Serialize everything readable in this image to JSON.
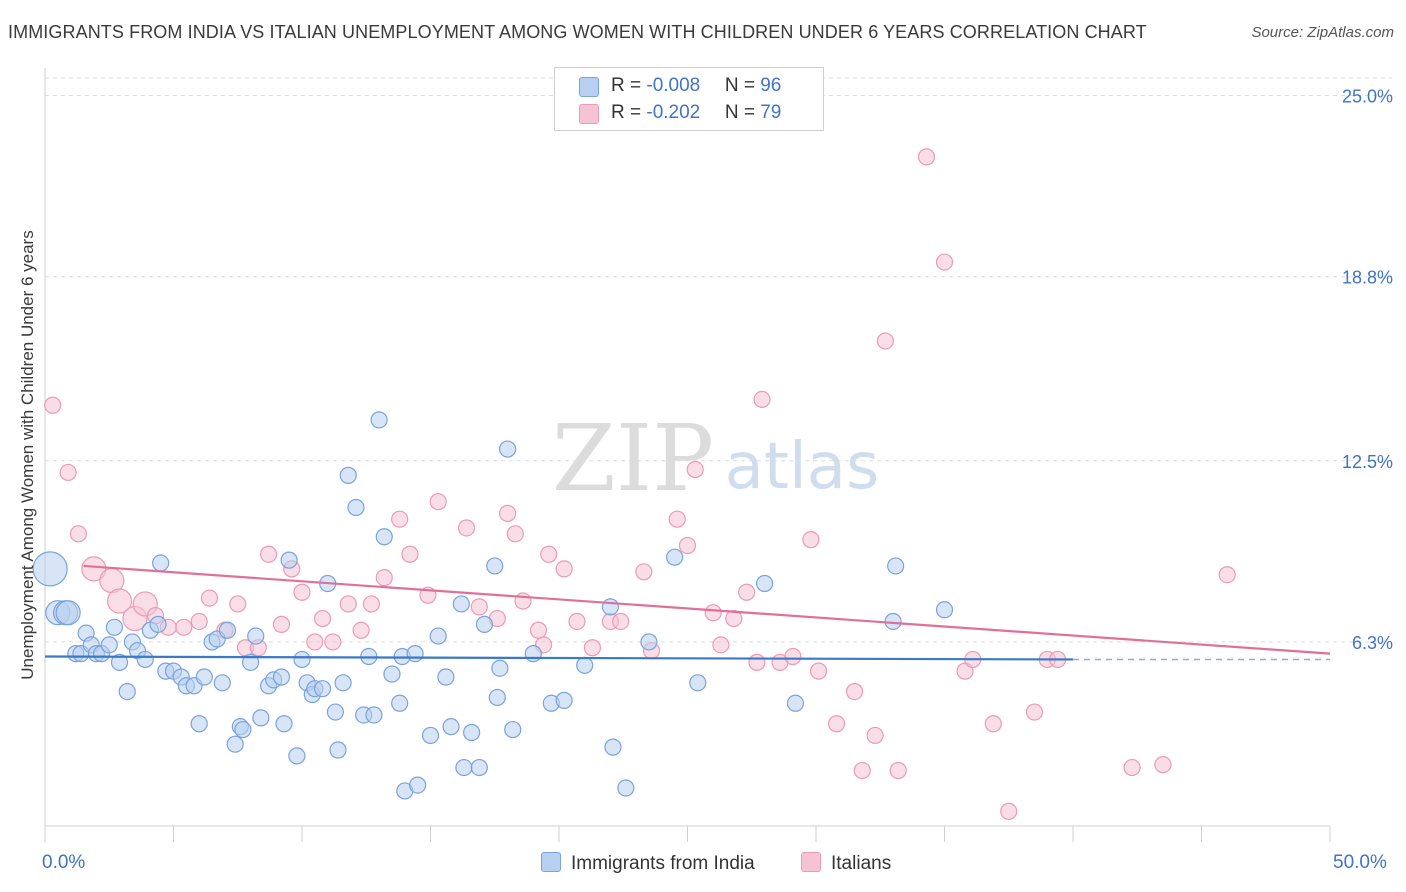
{
  "title": "IMMIGRANTS FROM INDIA VS ITALIAN UNEMPLOYMENT AMONG WOMEN WITH CHILDREN UNDER 6 YEARS CORRELATION CHART",
  "source": "Source: ZipAtlas.com",
  "watermark": {
    "zip": "ZIP",
    "atlas": "atlas"
  },
  "legend": {
    "india": {
      "r_label": "R = ",
      "r_value": "-0.008",
      "n_label": "N = ",
      "n_value": "96"
    },
    "italians": {
      "r_label": "R = ",
      "r_value": "-0.202",
      "n_label": "N = ",
      "n_value": "79"
    }
  },
  "colors": {
    "india_fill": "#b8d0f0",
    "india_stroke": "#7aa3dc",
    "india_line": "#3a78c8",
    "italians_fill": "#f6c3d4",
    "italians_stroke": "#ec9ab6",
    "italians_line": "#e0709a",
    "grid": "#dddddd",
    "tick_label": "#3f74c8"
  },
  "chart_data": {
    "type": "scatter",
    "title": "IMMIGRANTS FROM INDIA VS ITALIAN UNEMPLOYMENT AMONG WOMEN WITH CHILDREN UNDER 6 YEARS CORRELATION CHART",
    "xlabel": "",
    "ylabel": "Unemployment Among Women with Children Under 6 years",
    "xlim": [
      0,
      50
    ],
    "ylim": [
      0,
      25.6
    ],
    "x_tick_labels": [
      "0.0%",
      "50.0%"
    ],
    "y_ticks": [
      6.3,
      12.5,
      18.8,
      25.0
    ],
    "y_tick_labels": [
      "6.3%",
      "12.5%",
      "18.8%",
      "25.0%"
    ],
    "grid": "horizontal dashed",
    "legend_position": "bottom-center",
    "series": [
      {
        "name": "Immigrants from India",
        "trend": {
          "x": [
            0,
            40
          ],
          "y": [
            5.8,
            5.7
          ],
          "extended_to": 50,
          "extended_y": 5.7
        },
        "points": [
          [
            0.2,
            8.8,
            3
          ],
          [
            0.5,
            7.3,
            2
          ],
          [
            0.8,
            7.3,
            2
          ],
          [
            0.9,
            7.3,
            2
          ],
          [
            1.2,
            5.9,
            1
          ],
          [
            1.4,
            5.9,
            1
          ],
          [
            1.6,
            6.6,
            1
          ],
          [
            1.8,
            6.2,
            1
          ],
          [
            2.0,
            5.9,
            1
          ],
          [
            2.2,
            5.9,
            1
          ],
          [
            2.5,
            6.2,
            1
          ],
          [
            2.7,
            6.8,
            1
          ],
          [
            2.9,
            5.6,
            1
          ],
          [
            3.2,
            4.6,
            1
          ],
          [
            3.4,
            6.3,
            1
          ],
          [
            3.6,
            6.0,
            1
          ],
          [
            3.9,
            5.7,
            1
          ],
          [
            4.1,
            6.7,
            1
          ],
          [
            4.4,
            6.9,
            1
          ],
          [
            4.5,
            9.0,
            1
          ],
          [
            4.7,
            5.3,
            1
          ],
          [
            5.0,
            5.3,
            1
          ],
          [
            5.3,
            5.1,
            1
          ],
          [
            5.5,
            4.8,
            1
          ],
          [
            5.8,
            4.8,
            1
          ],
          [
            6.0,
            3.5,
            1
          ],
          [
            6.2,
            5.1,
            1
          ],
          [
            6.5,
            6.3,
            1
          ],
          [
            6.7,
            6.4,
            1
          ],
          [
            6.9,
            4.9,
            1
          ],
          [
            7.1,
            6.7,
            1
          ],
          [
            7.4,
            2.8,
            1
          ],
          [
            7.6,
            3.4,
            1
          ],
          [
            7.7,
            3.3,
            1
          ],
          [
            8.0,
            5.6,
            1
          ],
          [
            8.2,
            6.5,
            1
          ],
          [
            8.4,
            3.7,
            1
          ],
          [
            8.7,
            4.8,
            1
          ],
          [
            8.9,
            5.0,
            1
          ],
          [
            9.2,
            5.1,
            1
          ],
          [
            9.3,
            3.5,
            1
          ],
          [
            9.5,
            9.1,
            1
          ],
          [
            9.8,
            2.4,
            1
          ],
          [
            10.0,
            5.7,
            1
          ],
          [
            10.2,
            4.9,
            1
          ],
          [
            10.4,
            4.5,
            1
          ],
          [
            10.5,
            4.7,
            1
          ],
          [
            10.8,
            4.7,
            1
          ],
          [
            11.0,
            8.3,
            1
          ],
          [
            11.3,
            3.9,
            1
          ],
          [
            11.4,
            2.6,
            1
          ],
          [
            11.6,
            4.9,
            1
          ],
          [
            11.8,
            12.0,
            1
          ],
          [
            12.1,
            10.9,
            1
          ],
          [
            12.4,
            3.8,
            1
          ],
          [
            12.6,
            5.8,
            1
          ],
          [
            12.8,
            3.8,
            1
          ],
          [
            13.0,
            13.9,
            1
          ],
          [
            13.2,
            9.9,
            1
          ],
          [
            13.5,
            5.2,
            1
          ],
          [
            13.8,
            4.2,
            1
          ],
          [
            13.9,
            5.8,
            1
          ],
          [
            14.0,
            1.2,
            1
          ],
          [
            14.4,
            5.9,
            1
          ],
          [
            14.5,
            1.4,
            1
          ],
          [
            15.0,
            3.1,
            1
          ],
          [
            15.3,
            6.5,
            1
          ],
          [
            15.6,
            5.1,
            1
          ],
          [
            15.8,
            3.4,
            1
          ],
          [
            16.2,
            7.6,
            1
          ],
          [
            16.3,
            2.0,
            1
          ],
          [
            16.6,
            3.2,
            1
          ],
          [
            16.9,
            2.0,
            1
          ],
          [
            17.1,
            6.9,
            1
          ],
          [
            17.5,
            8.9,
            1
          ],
          [
            17.6,
            4.4,
            1
          ],
          [
            17.7,
            5.4,
            1
          ],
          [
            18.0,
            12.9,
            1
          ],
          [
            18.2,
            3.3,
            1
          ],
          [
            19.0,
            5.9,
            1
          ],
          [
            19.7,
            4.2,
            1
          ],
          [
            20.2,
            4.3,
            1
          ],
          [
            21.0,
            5.5,
            1
          ],
          [
            22.0,
            7.5,
            1
          ],
          [
            22.1,
            2.7,
            1
          ],
          [
            22.6,
            1.3,
            1
          ],
          [
            23.5,
            6.3,
            1
          ],
          [
            24.5,
            9.2,
            1
          ],
          [
            25.4,
            4.9,
            1
          ],
          [
            28.0,
            8.3,
            1
          ],
          [
            29.2,
            4.2,
            1
          ],
          [
            33.0,
            7.0,
            1
          ],
          [
            33.1,
            8.9,
            1
          ],
          [
            35.0,
            7.4,
            1
          ]
        ]
      },
      {
        "name": "Italians",
        "trend": {
          "x": [
            1.5,
            50
          ],
          "y": [
            8.9,
            5.9
          ]
        },
        "points": [
          [
            0.3,
            14.4,
            1
          ],
          [
            0.9,
            12.1,
            1
          ],
          [
            1.3,
            10.0,
            1
          ],
          [
            1.9,
            8.8,
            2
          ],
          [
            2.6,
            8.4,
            2
          ],
          [
            2.9,
            7.7,
            2
          ],
          [
            3.5,
            7.1,
            2
          ],
          [
            3.9,
            7.6,
            2
          ],
          [
            4.3,
            7.2,
            1
          ],
          [
            4.8,
            6.8,
            1
          ],
          [
            5.4,
            6.8,
            1
          ],
          [
            6.0,
            7.0,
            1
          ],
          [
            6.4,
            7.8,
            1
          ],
          [
            7.0,
            6.7,
            1
          ],
          [
            7.5,
            7.6,
            1
          ],
          [
            7.8,
            6.1,
            1
          ],
          [
            8.3,
            6.1,
            1
          ],
          [
            8.7,
            9.3,
            1
          ],
          [
            9.2,
            6.9,
            1
          ],
          [
            9.6,
            8.8,
            1
          ],
          [
            10.0,
            8.0,
            1
          ],
          [
            10.5,
            6.3,
            1
          ],
          [
            10.8,
            7.1,
            1
          ],
          [
            11.2,
            6.3,
            1
          ],
          [
            11.8,
            7.6,
            1
          ],
          [
            12.3,
            6.7,
            1
          ],
          [
            12.7,
            7.6,
            1
          ],
          [
            13.2,
            8.5,
            1
          ],
          [
            13.8,
            10.5,
            1
          ],
          [
            14.2,
            9.3,
            1
          ],
          [
            14.9,
            7.9,
            1
          ],
          [
            15.3,
            11.1,
            1
          ],
          [
            16.4,
            10.2,
            1
          ],
          [
            16.9,
            7.5,
            1
          ],
          [
            17.6,
            7.1,
            1
          ],
          [
            18.0,
            10.7,
            1
          ],
          [
            18.3,
            10.0,
            1
          ],
          [
            18.6,
            7.7,
            1
          ],
          [
            19.2,
            6.7,
            1
          ],
          [
            19.4,
            6.2,
            1
          ],
          [
            19.6,
            9.3,
            1
          ],
          [
            20.2,
            8.8,
            1
          ],
          [
            20.7,
            7.0,
            1
          ],
          [
            21.3,
            6.1,
            1
          ],
          [
            22.0,
            7.0,
            1
          ],
          [
            22.4,
            7.0,
            1
          ],
          [
            23.3,
            8.7,
            1
          ],
          [
            23.6,
            6.0,
            1
          ],
          [
            24.6,
            10.5,
            1
          ],
          [
            25.0,
            9.6,
            1
          ],
          [
            25.3,
            12.2,
            1
          ],
          [
            26.0,
            7.3,
            1
          ],
          [
            26.3,
            6.2,
            1
          ],
          [
            26.8,
            7.1,
            1
          ],
          [
            27.3,
            8.0,
            1
          ],
          [
            27.7,
            5.6,
            1
          ],
          [
            27.9,
            14.6,
            1
          ],
          [
            28.6,
            5.6,
            1
          ],
          [
            29.1,
            5.8,
            1
          ],
          [
            29.8,
            9.8,
            1
          ],
          [
            30.1,
            5.3,
            1
          ],
          [
            30.8,
            3.5,
            1
          ],
          [
            31.5,
            4.6,
            1
          ],
          [
            31.8,
            1.9,
            1
          ],
          [
            32.3,
            3.1,
            1
          ],
          [
            32.7,
            16.6,
            1
          ],
          [
            33.2,
            1.9,
            1
          ],
          [
            34.3,
            22.9,
            1
          ],
          [
            35.0,
            19.3,
            1
          ],
          [
            35.8,
            5.3,
            1
          ],
          [
            36.1,
            5.7,
            1
          ],
          [
            36.9,
            3.5,
            1
          ],
          [
            37.5,
            0.5,
            1
          ],
          [
            38.5,
            3.9,
            1
          ],
          [
            39.0,
            5.7,
            1
          ],
          [
            39.4,
            5.7,
            1
          ],
          [
            42.3,
            2.0,
            1
          ],
          [
            43.5,
            2.1,
            1
          ],
          [
            46.0,
            8.6,
            1
          ]
        ]
      }
    ]
  },
  "bottom_legend": {
    "india": "Immigrants from India",
    "italians": "Italians"
  }
}
